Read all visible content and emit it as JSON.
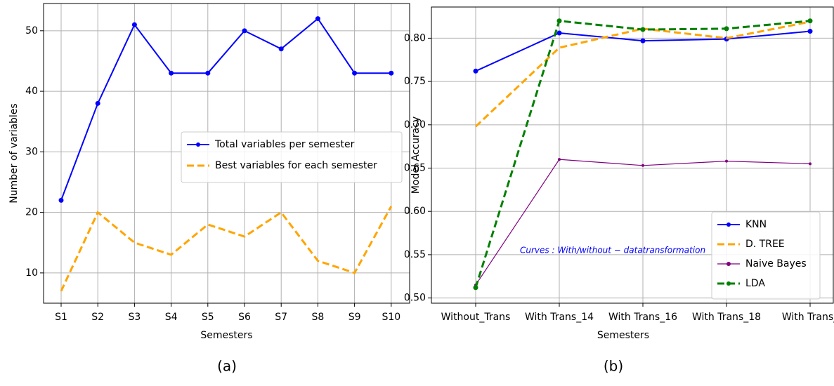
{
  "chart_data": [
    {
      "type": "line",
      "caption": "(a)",
      "x_label": "Semesters",
      "y_label": "Number of variables",
      "categories": [
        "S1",
        "S2",
        "S3",
        "S4",
        "S5",
        "S6",
        "S7",
        "S8",
        "S9",
        "S10"
      ],
      "series": [
        {
          "name": "Total variables per semester",
          "color": "#0000ff",
          "linestyle": "solid",
          "marker": true,
          "values": [
            22,
            38,
            51,
            43,
            43,
            50,
            47,
            52,
            43,
            43
          ]
        },
        {
          "name": "Best variables for each semester",
          "color": "#ffa500",
          "linestyle": "dashed",
          "marker": false,
          "values": [
            7,
            20,
            15,
            13,
            18,
            16,
            20,
            12,
            10,
            21
          ]
        }
      ],
      "ylim": [
        5,
        54.5
      ],
      "yticks": [
        10,
        20,
        30,
        40,
        50
      ],
      "grid": true,
      "legend": "center right"
    },
    {
      "type": "line",
      "caption": "(b)",
      "x_label": "Semesters",
      "y_label": "Model Accuracy",
      "annotation": "Curves : With/without − datatransformation",
      "categories": [
        "Without_Trans",
        "With Trans_14",
        "With Trans_16",
        "With Trans_18",
        "With Trans_"
      ],
      "series": [
        {
          "name": "KNN",
          "color": "#0000ff",
          "linestyle": "solid",
          "marker": true,
          "values": [
            0.762,
            0.806,
            0.797,
            0.799,
            0.808
          ]
        },
        {
          "name": "D. TREE",
          "color": "#ffa500",
          "linestyle": "dashed",
          "marker": false,
          "values": [
            0.698,
            0.789,
            0.811,
            0.8,
            0.819
          ]
        },
        {
          "name": "Naive Bayes",
          "color": "#800080",
          "linestyle": "thin",
          "marker": true,
          "values": [
            0.515,
            0.66,
            0.653,
            0.658,
            0.655
          ]
        },
        {
          "name": "LDA",
          "color": "#008000",
          "linestyle": "dashed",
          "marker": true,
          "values": [
            0.512,
            0.82,
            0.81,
            0.811,
            0.82
          ]
        }
      ],
      "ylim": [
        0.494,
        0.836
      ],
      "yticks": [
        {
          "value": 0.5,
          "label": "0.50"
        },
        {
          "value": 0.55,
          "label": "0.55"
        },
        {
          "value": 0.6,
          "label": "0.60"
        },
        {
          "value": 0.65,
          "label": "0.65"
        },
        {
          "value": 0.7,
          "label": "0.70"
        },
        {
          "value": 0.75,
          "label": "0.75"
        },
        {
          "value": 0.8,
          "label": "0.80"
        }
      ],
      "grid": true,
      "legend": "lower right"
    }
  ]
}
